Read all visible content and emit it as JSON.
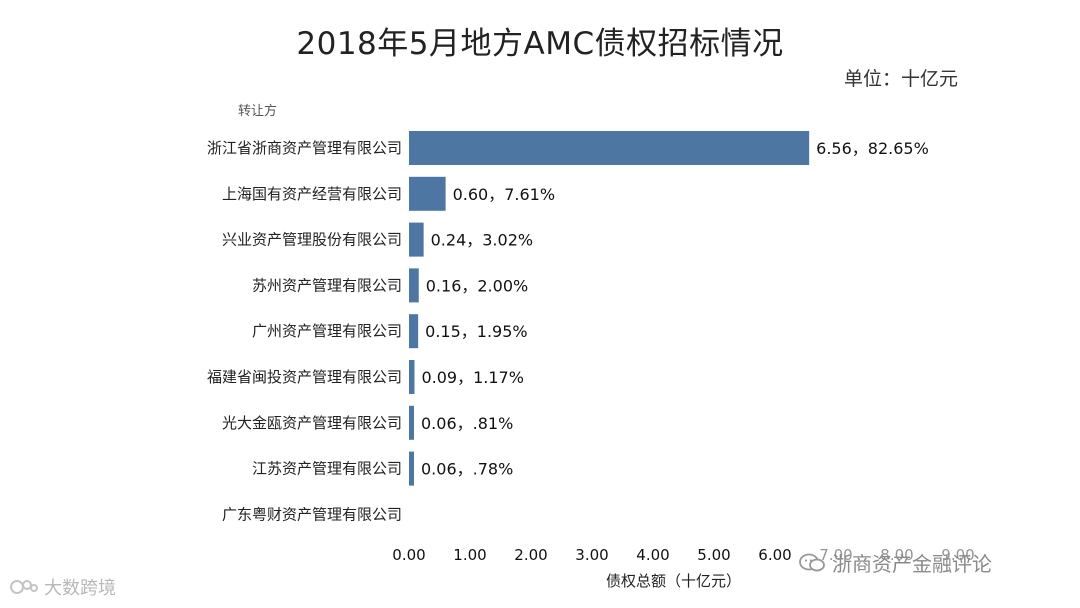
{
  "page": {
    "title": "2018年5月地方AMC债权招标情况",
    "unit_label": "单位：十亿元",
    "y_axis_heading": "转让方"
  },
  "chart_data": {
    "type": "bar",
    "orientation": "horizontal",
    "title": "2018年5月地方AMC债权招标情况",
    "xlabel": "债权总额（十亿元）",
    "ylabel": "转让方",
    "unit": "十亿元",
    "xlim": [
      0,
      9
    ],
    "x_ticks": [
      "0.00",
      "1.00",
      "2.00",
      "3.00",
      "4.00",
      "5.00",
      "6.00",
      "7.00",
      "8.00",
      "9.00"
    ],
    "bar_color": "#4e76a3",
    "categories": [
      "浙江省浙商资产管理有限公司",
      "上海国有资产经营有限公司",
      "兴业资产管理股份有限公司",
      "苏州资产管理有限公司",
      "广州资产管理有限公司",
      "福建省闽投资产管理有限公司",
      "光大金瓯资产管理有限公司",
      "江苏资产管理有限公司",
      "广东粤财资产管理有限公司"
    ],
    "values": [
      6.56,
      0.6,
      0.24,
      0.16,
      0.15,
      0.09,
      0.06,
      0.06,
      0.0
    ],
    "data_labels": [
      "6.56，82.65%",
      "0.60，7.61%",
      "0.24，3.02%",
      "0.16，2.00%",
      "0.15，1.95%",
      "0.09，1.17%",
      "0.06，.81%",
      "0.06，.78%",
      ""
    ],
    "grid": false
  },
  "watermarks": {
    "left": "大数跨境",
    "right": "浙商资产金融评论"
  }
}
